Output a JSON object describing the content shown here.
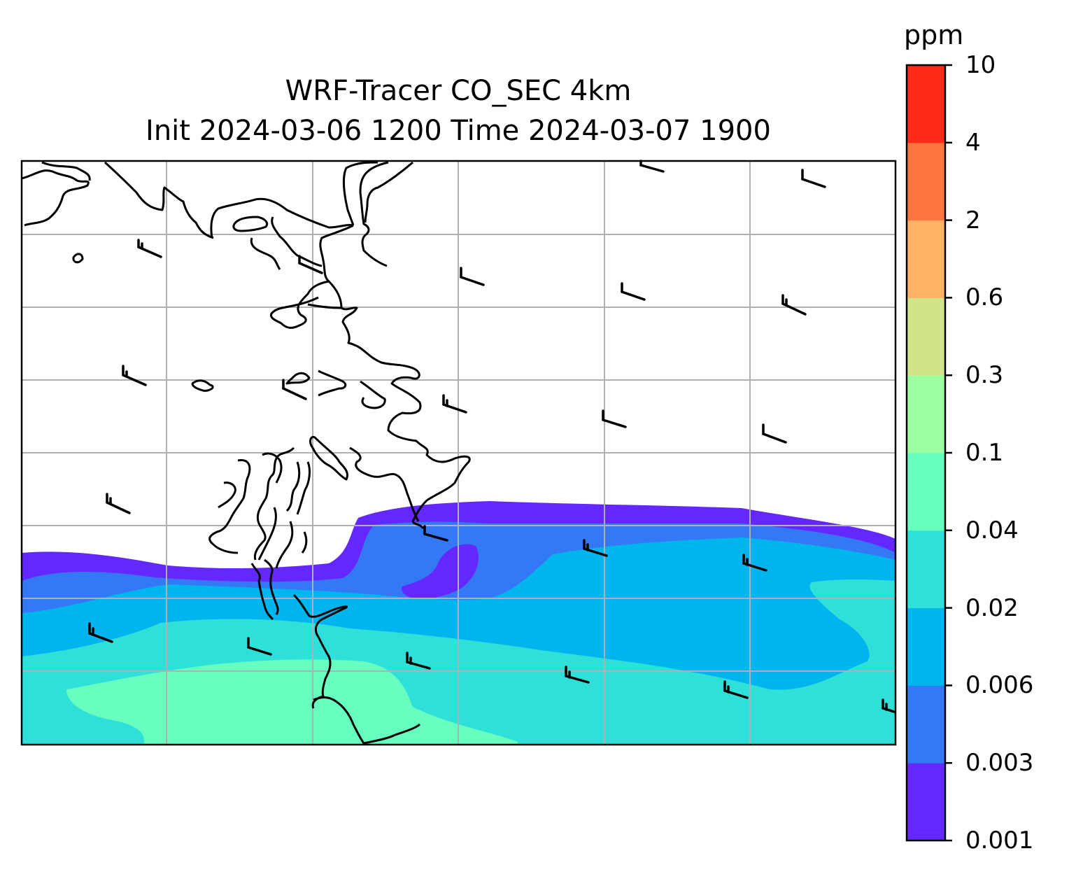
{
  "map": {
    "title_line1": "WRF-Tracer CO_SEC 4km",
    "title_line2": "Init 2024-03-06 1200 Time 2024-03-07 1900",
    "variable": "CO_SEC tracer",
    "colors": {
      "land_outline": "#000000",
      "gridline": "#b0b0b0",
      "frame": "#000000"
    }
  },
  "colorbar": {
    "unit": "ppm",
    "levels": [
      "0.001",
      "0.003",
      "0.006",
      "0.02",
      "0.04",
      "0.1",
      "0.3",
      "0.6",
      "2",
      "4",
      "10"
    ],
    "colors": [
      "#6428ff",
      "#3478f6",
      "#00b4ee",
      "#2ee0d8",
      "#66ffc0",
      "#9cffa0",
      "#d2e48a",
      "#ffb266",
      "#ff7540",
      "#ff2a18"
    ]
  },
  "wind_barbs": {
    "count": 20,
    "glyph": "wind-barb-icon"
  }
}
